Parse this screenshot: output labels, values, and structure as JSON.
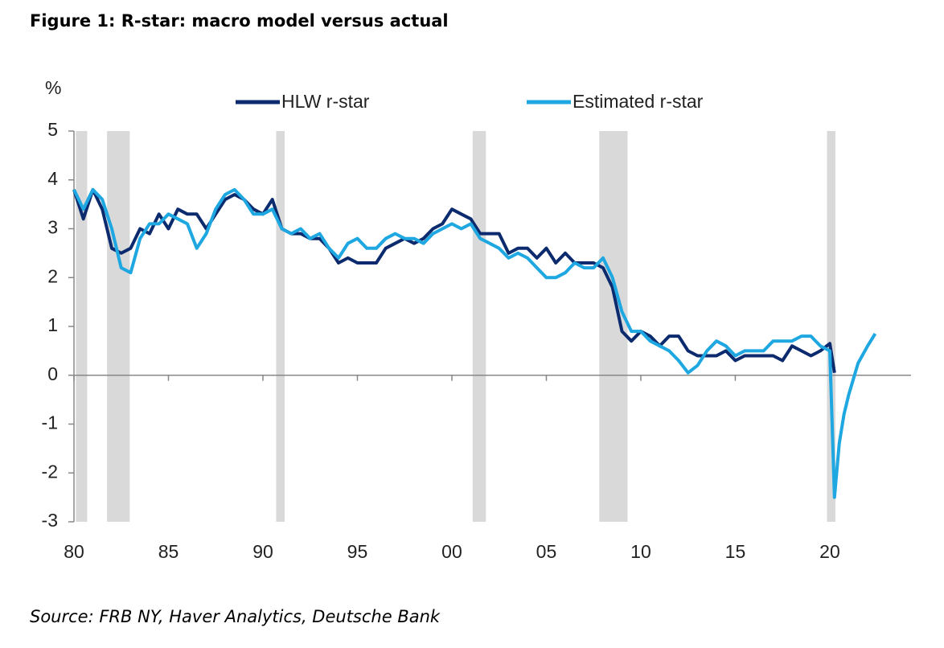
{
  "chart_data": {
    "type": "line",
    "title": "Figure 1: R-star: macro model versus actual",
    "y_label": "%",
    "source": "Source: FRB NY, Haver Analytics, Deutsche Bank",
    "xlim": [
      1980,
      2024.3
    ],
    "ylim": [
      -3,
      5
    ],
    "yticks": [
      -3,
      -2,
      -1,
      0,
      1,
      2,
      3,
      4,
      5
    ],
    "xticks": [
      {
        "value": 1980,
        "label": "80"
      },
      {
        "value": 1985,
        "label": "85"
      },
      {
        "value": 1990,
        "label": "90"
      },
      {
        "value": 1995,
        "label": "95"
      },
      {
        "value": 2000,
        "label": "00"
      },
      {
        "value": 2005,
        "label": "05"
      },
      {
        "value": 2010,
        "label": "10"
      },
      {
        "value": 2015,
        "label": "15"
      },
      {
        "value": 2020,
        "label": "20"
      }
    ],
    "shaded_periods": [
      [
        1980.1,
        1980.7
      ],
      [
        1981.75,
        1982.95
      ],
      [
        1990.7,
        1991.15
      ],
      [
        2001.1,
        2001.8
      ],
      [
        2007.8,
        2009.3
      ],
      [
        2019.85,
        2020.3
      ]
    ],
    "shade_color": "#d9d9d9",
    "x": [
      1980,
      1980.5,
      1981,
      1981.5,
      1982,
      1982.5,
      1983,
      1983.5,
      1984,
      1984.5,
      1985,
      1985.5,
      1986,
      1986.5,
      1987,
      1987.5,
      1988,
      1988.5,
      1989,
      1989.5,
      1990,
      1990.5,
      1991,
      1991.5,
      1992,
      1992.5,
      1993,
      1993.5,
      1994,
      1994.5,
      1995,
      1995.5,
      1996,
      1996.5,
      1997,
      1997.5,
      1998,
      1998.5,
      1999,
      1999.5,
      2000,
      2000.5,
      2001,
      2001.5,
      2002,
      2002.5,
      2003,
      2003.5,
      2004,
      2004.5,
      2005,
      2005.5,
      2006,
      2006.5,
      2007,
      2007.5,
      2008,
      2008.5,
      2009,
      2009.5,
      2010,
      2010.5,
      2011,
      2011.5,
      2012,
      2012.5,
      2013,
      2013.5,
      2014,
      2014.5,
      2015,
      2015.5,
      2016,
      2016.5,
      2017,
      2017.5,
      2018,
      2018.5,
      2019,
      2019.5,
      2020,
      2020.25,
      2020.5,
      2020.75,
      2021,
      2021.5,
      2022,
      2022.4
    ],
    "series": [
      {
        "name": "HLW r-star",
        "color": "#0c2a6e",
        "values": [
          3.8,
          3.2,
          3.8,
          3.4,
          2.6,
          2.5,
          2.6,
          3.0,
          2.9,
          3.3,
          3.0,
          3.4,
          3.3,
          3.3,
          3.0,
          3.3,
          3.6,
          3.7,
          3.6,
          3.4,
          3.3,
          3.6,
          3.0,
          2.9,
          2.9,
          2.8,
          2.8,
          2.6,
          2.3,
          2.4,
          2.3,
          2.3,
          2.3,
          2.6,
          2.7,
          2.8,
          2.7,
          2.8,
          3.0,
          3.1,
          3.4,
          3.3,
          3.2,
          2.9,
          2.9,
          2.9,
          2.5,
          2.6,
          2.6,
          2.4,
          2.6,
          2.3,
          2.5,
          2.3,
          2.3,
          2.3,
          2.2,
          1.8,
          0.9,
          0.7,
          0.9,
          0.8,
          0.6,
          0.8,
          0.8,
          0.5,
          0.4,
          0.4,
          0.4,
          0.5,
          0.3,
          0.4,
          0.4,
          0.4,
          0.4,
          0.3,
          0.6,
          0.5,
          0.4,
          0.5,
          0.65,
          0.05,
          null,
          null,
          null,
          null,
          null,
          null
        ]
      },
      {
        "name": "Estimated r-star",
        "color": "#1ea7e1",
        "values": [
          3.8,
          3.4,
          3.8,
          3.6,
          3.0,
          2.2,
          2.1,
          2.8,
          3.1,
          3.1,
          3.3,
          3.2,
          3.1,
          2.6,
          2.9,
          3.4,
          3.7,
          3.8,
          3.6,
          3.3,
          3.3,
          3.4,
          3.0,
          2.9,
          3.0,
          2.8,
          2.9,
          2.6,
          2.4,
          2.7,
          2.8,
          2.6,
          2.6,
          2.8,
          2.9,
          2.8,
          2.8,
          2.7,
          2.9,
          3.0,
          3.1,
          3.0,
          3.1,
          2.8,
          2.7,
          2.6,
          2.4,
          2.5,
          2.4,
          2.2,
          2.0,
          2.0,
          2.1,
          2.3,
          2.2,
          2.2,
          2.4,
          2.0,
          1.3,
          0.9,
          0.9,
          0.7,
          0.6,
          0.5,
          0.3,
          0.05,
          0.2,
          0.5,
          0.7,
          0.6,
          0.4,
          0.5,
          0.5,
          0.5,
          0.7,
          0.7,
          0.7,
          0.8,
          0.8,
          0.6,
          0.5,
          -2.5,
          -1.4,
          -0.8,
          -0.4,
          0.25,
          0.6,
          0.85
        ]
      }
    ]
  }
}
